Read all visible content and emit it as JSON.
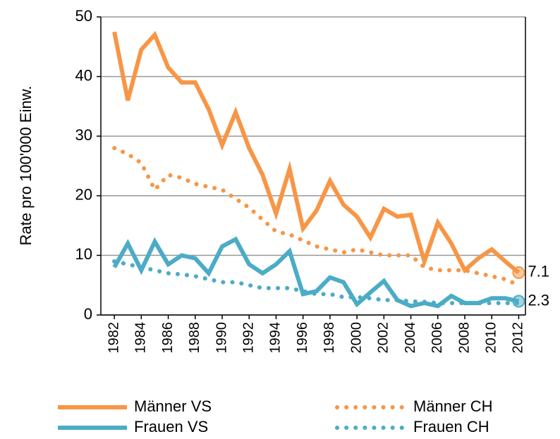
{
  "chart_data": {
    "type": "line",
    "y_label": "Rate pro 100'000 Einw.",
    "x": [
      1982,
      1983,
      1984,
      1985,
      1986,
      1987,
      1988,
      1989,
      1990,
      1991,
      1992,
      1993,
      1994,
      1995,
      1996,
      1997,
      1998,
      1999,
      2000,
      2001,
      2002,
      2003,
      2004,
      2005,
      2006,
      2007,
      2008,
      2009,
      2010,
      2011,
      2012
    ],
    "xlim": [
      1981,
      2012.5
    ],
    "xticks": [
      1982,
      1984,
      1986,
      1988,
      1990,
      1992,
      1994,
      1996,
      1998,
      2000,
      2002,
      2004,
      2006,
      2008,
      2010,
      2012
    ],
    "ylim": [
      0,
      50
    ],
    "yticks": [
      0,
      10,
      20,
      30,
      40,
      50
    ],
    "grid": true,
    "series": [
      {
        "name": "Männer VS",
        "color": "#f79646",
        "style": "solid",
        "end_marker": true,
        "values": [
          47.5,
          36,
          44.5,
          47,
          41.5,
          39,
          39,
          34.5,
          28.5,
          34,
          28,
          23.5,
          17,
          24.5,
          14.5,
          17.5,
          22.5,
          18.5,
          16.5,
          13,
          17.8,
          16.5,
          16.8,
          9,
          15.5,
          12,
          7.5,
          9.5,
          11,
          9,
          7.1
        ]
      },
      {
        "name": "Männer CH",
        "color": "#f79646",
        "style": "dotted",
        "end_marker": false,
        "values": [
          28,
          27,
          25.5,
          21,
          23.5,
          23,
          22,
          21.5,
          21,
          19.5,
          18,
          16,
          14,
          13.5,
          12.5,
          11.5,
          11,
          10.5,
          11,
          10.5,
          10,
          10,
          10,
          8,
          7.5,
          7.5,
          7.5,
          7,
          6.5,
          6,
          5
        ]
      },
      {
        "name": "Frauen VS",
        "color": "#4bacc6",
        "style": "solid",
        "end_marker": true,
        "values": [
          8,
          12,
          7.5,
          12.3,
          8.5,
          10,
          9.5,
          7,
          11.5,
          12.7,
          8.5,
          7,
          8.5,
          10.7,
          3.5,
          4,
          6.3,
          5.5,
          1.8,
          3.8,
          5.7,
          2.5,
          1.5,
          2,
          1.5,
          3.2,
          2,
          2,
          2.8,
          2.8,
          2.3
        ]
      },
      {
        "name": "Frauen CH",
        "color": "#4bacc6",
        "style": "dotted",
        "end_marker": false,
        "values": [
          9,
          8.5,
          8,
          7.5,
          7,
          6.8,
          6.5,
          6,
          5.5,
          5.5,
          5,
          4.5,
          4.5,
          4.5,
          4,
          3.5,
          3.5,
          3,
          3,
          2.8,
          2.5,
          2.5,
          2.3,
          2.2,
          2,
          2,
          2,
          2,
          2,
          2,
          2
        ]
      }
    ]
  }
}
